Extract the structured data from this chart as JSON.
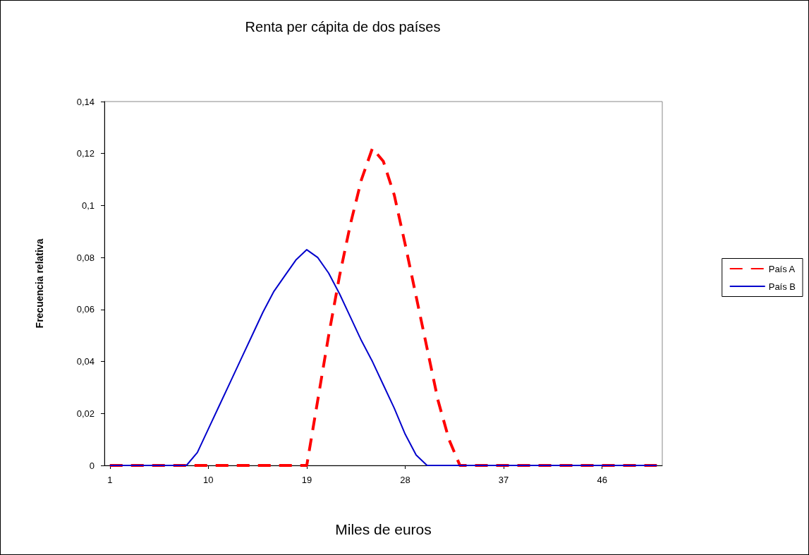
{
  "chart_data": {
    "type": "line",
    "title": "Renta per cápita de dos países",
    "xlabel": "Miles de euros",
    "ylabel": "Frecuencia relativa",
    "categories": [
      "1",
      null,
      null,
      null,
      null,
      null,
      null,
      null,
      null,
      "10",
      null,
      null,
      null,
      null,
      null,
      null,
      null,
      null,
      "19",
      null,
      null,
      null,
      null,
      null,
      null,
      null,
      null,
      "28",
      null,
      null,
      null,
      null,
      null,
      null,
      null,
      null,
      "37",
      null,
      null,
      null,
      null,
      null,
      null,
      null,
      null,
      "46",
      null,
      null,
      null,
      null,
      null
    ],
    "series": [
      {
        "name": "País A",
        "color": "#ff0000",
        "line_style": "dashed",
        "values": [
          0,
          0,
          0,
          0,
          0,
          0,
          0,
          0,
          0,
          0,
          0,
          0,
          0,
          0,
          0,
          0,
          0,
          0,
          0,
          0.025,
          0.05,
          0.073,
          0.093,
          0.11,
          0.122,
          0.117,
          0.104,
          0.085,
          0.065,
          0.045,
          0.025,
          0.01,
          0,
          0,
          0,
          0,
          0,
          0,
          0,
          0,
          0,
          0,
          0,
          0,
          0,
          0,
          0,
          0,
          0,
          0,
          0
        ]
      },
      {
        "name": "País B",
        "color": "#0000cc",
        "line_style": "solid",
        "values": [
          0,
          0,
          0,
          0,
          0,
          0,
          0,
          0,
          0.005,
          0.014,
          0.023,
          0.032,
          0.041,
          0.05,
          0.059,
          0.067,
          0.073,
          0.079,
          0.083,
          0.08,
          0.074,
          0.066,
          0.057,
          0.048,
          0.04,
          0.031,
          0.022,
          0.012,
          0.004,
          0,
          0,
          0,
          0,
          0,
          0,
          0,
          0,
          0,
          0,
          0,
          0,
          0,
          0,
          0,
          0,
          0,
          0,
          0,
          0,
          0,
          0
        ]
      }
    ],
    "ylim": [
      0,
      0.14
    ],
    "yticks": [
      {
        "value": 0,
        "label": "0"
      },
      {
        "value": 0.02,
        "label": "0,02"
      },
      {
        "value": 0.04,
        "label": "0,04"
      },
      {
        "value": 0.06,
        "label": "0,06"
      },
      {
        "value": 0.08,
        "label": "0,08"
      },
      {
        "value": 0.1,
        "label": "0,1"
      },
      {
        "value": 0.12,
        "label": "0,12"
      },
      {
        "value": 0.14,
        "label": "0,14"
      }
    ],
    "grid": false,
    "legend": "right",
    "marker": "none"
  }
}
